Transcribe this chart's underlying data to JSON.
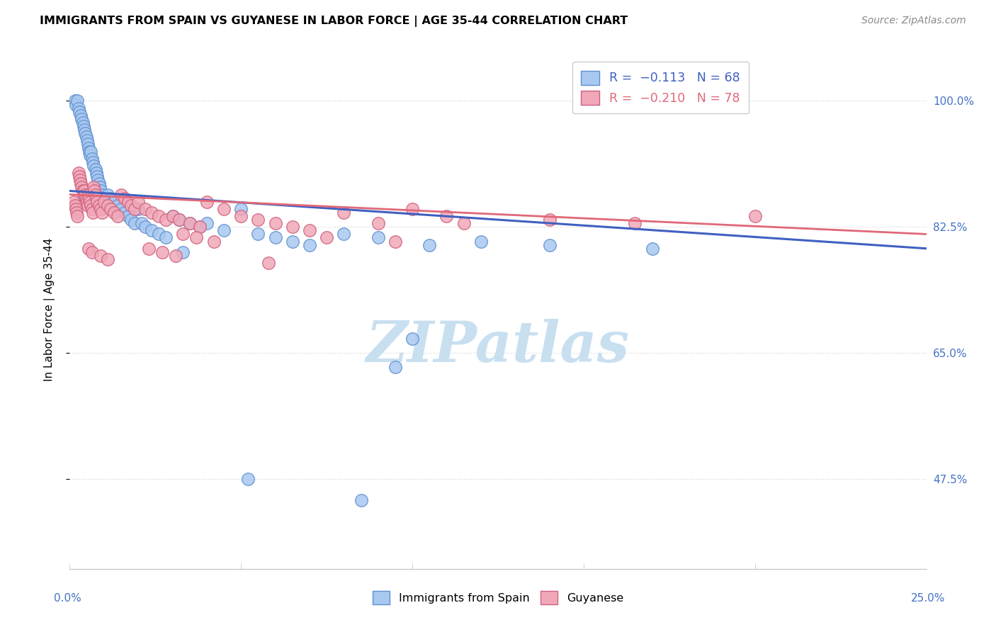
{
  "title": "IMMIGRANTS FROM SPAIN VS GUYANESE IN LABOR FORCE | AGE 35-44 CORRELATION CHART",
  "source": "Source: ZipAtlas.com",
  "ylabel": "In Labor Force | Age 35-44",
  "xlim": [
    0.0,
    25.0
  ],
  "ylim": [
    35.0,
    107.0
  ],
  "yticks": [
    47.5,
    65.0,
    82.5,
    100.0
  ],
  "ytick_labels": [
    "47.5%",
    "65.0%",
    "82.5%",
    "100.0%"
  ],
  "r_blue": -0.113,
  "n_blue": 68,
  "r_pink": -0.21,
  "n_pink": 78,
  "color_blue_fill": "#A8C8F0",
  "color_blue_edge": "#6090D0",
  "color_pink_fill": "#F0A8B8",
  "color_pink_edge": "#D06080",
  "color_blue_line": "#4060C0",
  "color_pink_line": "#E06878",
  "watermark": "ZIPatlas",
  "watermark_color": "#C8DFF0",
  "legend_label_blue": "Immigrants from Spain",
  "legend_label_pink": "Guyanese",
  "blue_x": [
    0.15,
    0.18,
    0.22,
    0.25,
    0.28,
    0.32,
    0.35,
    0.38,
    0.4,
    0.42,
    0.45,
    0.48,
    0.5,
    0.52,
    0.55,
    0.58,
    0.6,
    0.62,
    0.65,
    0.68,
    0.7,
    0.75,
    0.78,
    0.8,
    0.82,
    0.85,
    0.88,
    0.9,
    0.95,
    1.0,
    1.05,
    1.1,
    1.2,
    1.3,
    1.4,
    1.5,
    1.6,
    1.7,
    1.8,
    1.9,
    2.0,
    2.1,
    2.2,
    2.4,
    2.6,
    2.8,
    3.0,
    3.2,
    3.5,
    3.8,
    4.0,
    4.5,
    5.0,
    5.5,
    6.0,
    6.5,
    7.0,
    8.0,
    9.0,
    9.5,
    10.0,
    10.5,
    12.0,
    14.0,
    17.0,
    5.2,
    8.5,
    3.3
  ],
  "blue_y": [
    100.0,
    99.5,
    100.0,
    99.0,
    98.5,
    98.0,
    97.5,
    97.0,
    96.5,
    96.0,
    95.5,
    95.0,
    94.5,
    94.0,
    93.5,
    93.0,
    92.5,
    93.0,
    92.0,
    91.5,
    91.0,
    90.5,
    90.0,
    89.5,
    89.0,
    88.5,
    88.0,
    87.5,
    87.0,
    86.5,
    86.0,
    87.0,
    86.5,
    86.0,
    85.5,
    85.0,
    84.5,
    84.0,
    83.5,
    83.0,
    85.0,
    83.0,
    82.5,
    82.0,
    81.5,
    81.0,
    84.0,
    83.5,
    83.0,
    82.5,
    83.0,
    82.0,
    85.0,
    81.5,
    81.0,
    80.5,
    80.0,
    81.5,
    81.0,
    63.0,
    67.0,
    80.0,
    80.5,
    80.0,
    79.5,
    47.5,
    44.5,
    79.0
  ],
  "pink_x": [
    0.12,
    0.15,
    0.18,
    0.2,
    0.22,
    0.25,
    0.28,
    0.3,
    0.32,
    0.35,
    0.38,
    0.4,
    0.42,
    0.45,
    0.48,
    0.5,
    0.52,
    0.55,
    0.58,
    0.6,
    0.62,
    0.65,
    0.68,
    0.7,
    0.72,
    0.75,
    0.78,
    0.8,
    0.85,
    0.9,
    0.95,
    1.0,
    1.1,
    1.2,
    1.3,
    1.4,
    1.5,
    1.6,
    1.7,
    1.8,
    1.9,
    2.0,
    2.2,
    2.4,
    2.6,
    2.8,
    3.0,
    3.2,
    3.5,
    3.8,
    4.0,
    4.5,
    5.0,
    5.5,
    6.0,
    6.5,
    7.0,
    8.0,
    9.0,
    10.0,
    11.0,
    14.0,
    16.5,
    20.0,
    3.3,
    3.7,
    4.2,
    0.55,
    0.65,
    0.9,
    1.1,
    2.3,
    2.7,
    3.1,
    5.8,
    7.5,
    9.5,
    11.5
  ],
  "pink_y": [
    86.0,
    85.5,
    85.0,
    84.5,
    84.0,
    90.0,
    89.5,
    89.0,
    88.5,
    88.0,
    87.5,
    87.0,
    87.5,
    87.0,
    86.5,
    86.0,
    85.5,
    87.0,
    86.5,
    86.0,
    85.5,
    85.0,
    84.5,
    88.0,
    87.5,
    87.0,
    86.5,
    86.0,
    85.5,
    85.0,
    84.5,
    86.0,
    85.5,
    85.0,
    84.5,
    84.0,
    87.0,
    86.5,
    86.0,
    85.5,
    85.0,
    86.0,
    85.0,
    84.5,
    84.0,
    83.5,
    84.0,
    83.5,
    83.0,
    82.5,
    86.0,
    85.0,
    84.0,
    83.5,
    83.0,
    82.5,
    82.0,
    84.5,
    83.0,
    85.0,
    84.0,
    83.5,
    83.0,
    84.0,
    81.5,
    81.0,
    80.5,
    79.5,
    79.0,
    78.5,
    78.0,
    79.5,
    79.0,
    78.5,
    77.5,
    81.0,
    80.5,
    83.0
  ]
}
